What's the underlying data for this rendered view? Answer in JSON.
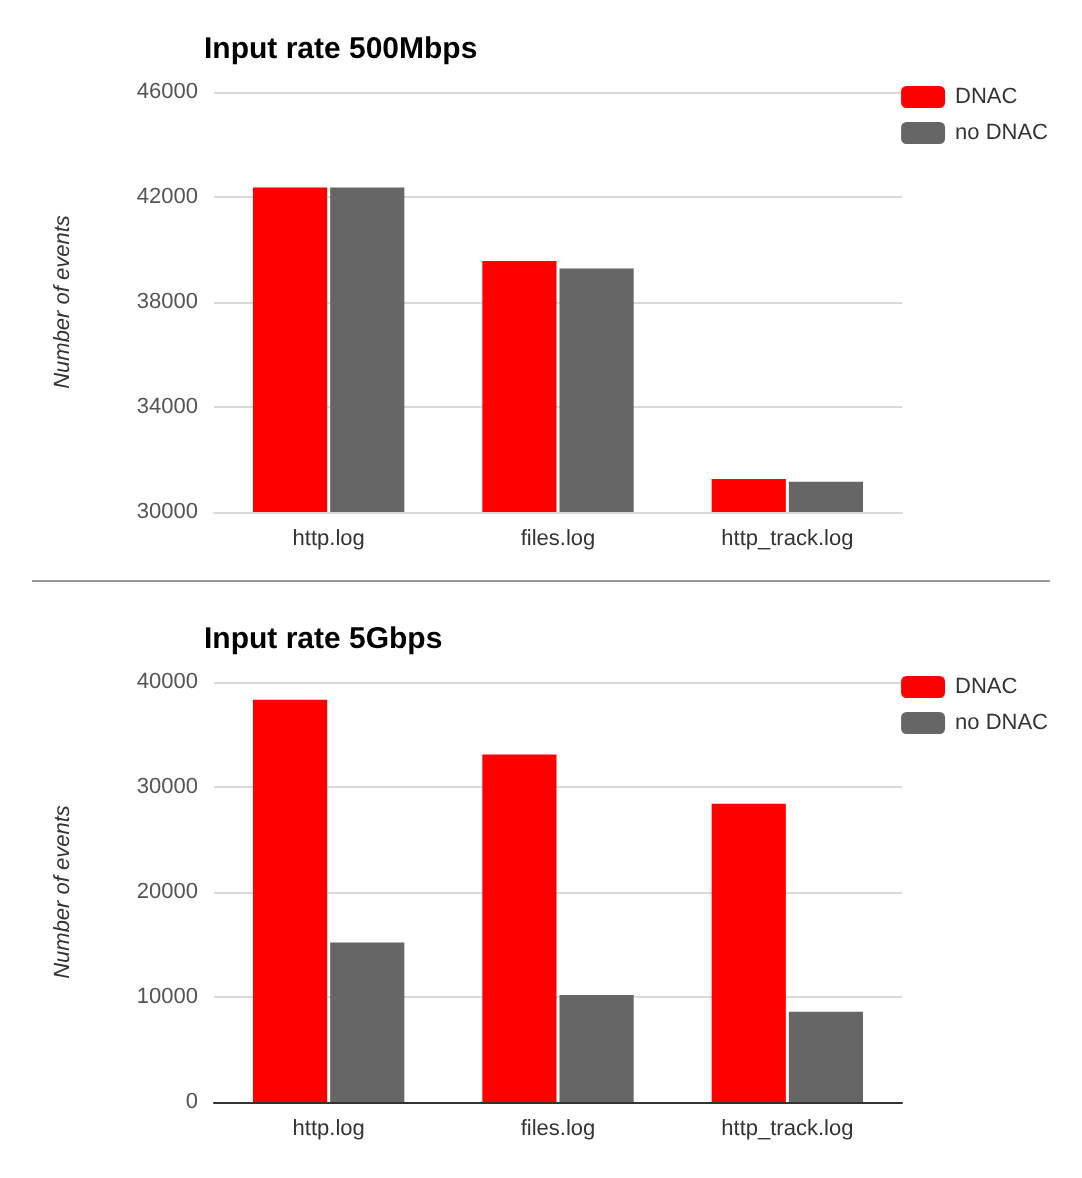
{
  "chart_data": [
    {
      "type": "bar",
      "title": "Input rate 500Mbps",
      "ylabel": "Number of events",
      "categories": [
        "http.log",
        "files.log",
        "http_track.log"
      ],
      "series": [
        {
          "name": "DNAC",
          "color": "#ff0000",
          "values": [
            42360,
            39560,
            31260
          ]
        },
        {
          "name": "no DNAC",
          "color": "#666666",
          "values": [
            42360,
            39280,
            31150
          ]
        }
      ],
      "ylim": [
        30000,
        46000
      ],
      "yticks": [
        30000,
        34000,
        38000,
        42000,
        46000
      ],
      "grid": "y",
      "legend": "top right"
    },
    {
      "type": "bar",
      "title": "Input rate 5Gbps",
      "ylabel": "Number of events",
      "categories": [
        "http.log",
        "files.log",
        "http_track.log"
      ],
      "series": [
        {
          "name": "DNAC",
          "color": "#ff0000",
          "values": [
            38300,
            33100,
            28400
          ]
        },
        {
          "name": "no DNAC",
          "color": "#666666",
          "values": [
            15200,
            10200,
            8600
          ]
        }
      ],
      "ylim": [
        0,
        40000
      ],
      "yticks": [
        0,
        10000,
        20000,
        30000,
        40000
      ],
      "grid": "y",
      "legend": "top right"
    }
  ]
}
